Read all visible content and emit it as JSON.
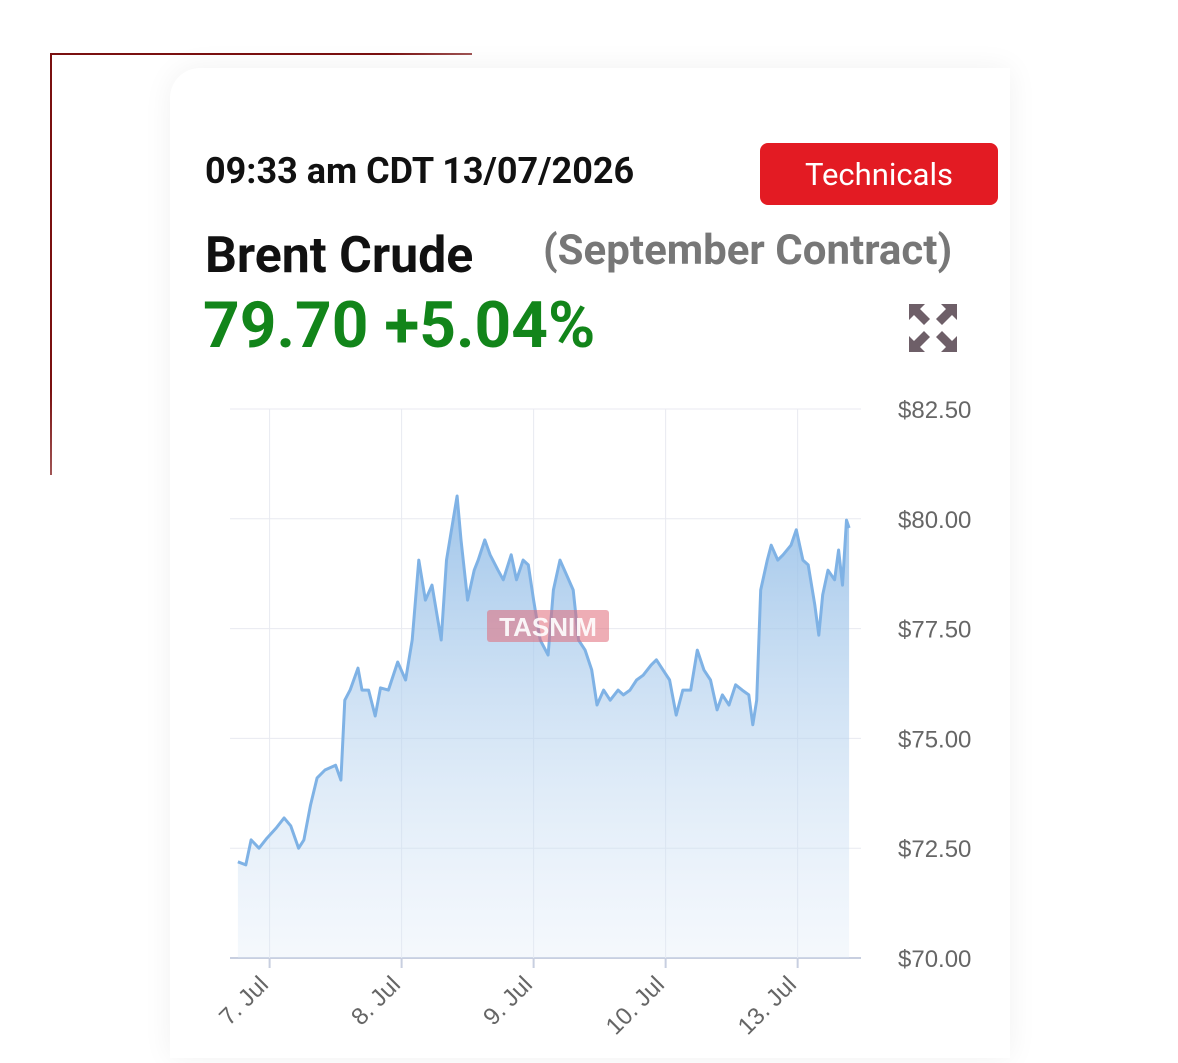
{
  "header": {
    "timestamp": "09:33 am CDT 13/07/2026",
    "button": "Technicals",
    "instrument": "Brent Crude",
    "contract": "(September Contract)",
    "price": "79.70",
    "change": "+5.04%"
  },
  "watermark": "TASNIM",
  "chart_data": {
    "type": "area",
    "color": "#7fb2e5",
    "x": [
      -0.24,
      -0.18,
      -0.14,
      -0.08,
      -0.02,
      0.05,
      0.11,
      0.16,
      0.22,
      0.26,
      0.31,
      0.36,
      0.42,
      0.5,
      0.54,
      0.57,
      0.61,
      0.67,
      0.7,
      0.75,
      0.8,
      0.84,
      0.9,
      0.97,
      1.03,
      1.08,
      1.13,
      1.18,
      1.23,
      1.3,
      1.34,
      1.39,
      1.42,
      1.45,
      1.5,
      1.55,
      1.58,
      1.63,
      1.67,
      1.73,
      1.77,
      1.83,
      1.87,
      1.92,
      1.96,
      2.0,
      2.05,
      2.11,
      2.15,
      2.2,
      2.25,
      2.3,
      2.34,
      2.39,
      2.44,
      2.48,
      2.53,
      2.58,
      2.64,
      2.68,
      2.73,
      2.78,
      2.83,
      2.89,
      2.93,
      2.98,
      3.03,
      3.08,
      3.13,
      3.19,
      3.24,
      3.29,
      3.34,
      3.39,
      3.43,
      3.48,
      3.53,
      3.58,
      3.63,
      3.66,
      3.69,
      3.72,
      3.77,
      3.8,
      3.85,
      3.89,
      3.95,
      3.99,
      4.04,
      4.08,
      4.13,
      4.16,
      4.19,
      4.23,
      4.28,
      4.31,
      4.34,
      4.37,
      4.39
    ],
    "values": [
      72.19,
      72.12,
      72.69,
      72.5,
      72.73,
      72.96,
      73.19,
      73.01,
      72.5,
      72.69,
      73.48,
      74.1,
      74.28,
      74.39,
      74.05,
      75.87,
      76.1,
      76.6,
      76.1,
      76.1,
      75.51,
      76.15,
      76.1,
      76.74,
      76.33,
      77.24,
      79.06,
      78.15,
      78.49,
      77.24,
      79.06,
      79.97,
      80.52,
      79.52,
      78.15,
      78.83,
      79.06,
      79.52,
      79.18,
      78.83,
      78.61,
      79.18,
      78.61,
      79.06,
      78.95,
      78.15,
      77.24,
      76.9,
      78.38,
      79.06,
      78.72,
      78.38,
      77.24,
      77.01,
      76.56,
      75.76,
      76.1,
      75.87,
      76.1,
      75.99,
      76.1,
      76.33,
      76.44,
      76.67,
      76.79,
      76.56,
      76.33,
      75.53,
      76.1,
      76.1,
      77.01,
      76.56,
      76.33,
      75.65,
      75.99,
      75.76,
      76.22,
      76.1,
      75.99,
      75.31,
      75.87,
      78.38,
      79.06,
      79.4,
      79.06,
      79.18,
      79.4,
      79.75,
      79.06,
      78.95,
      78.04,
      77.35,
      78.27,
      78.83,
      78.61,
      79.29,
      78.49,
      79.97,
      79.79
    ],
    "xlim": [
      -0.3,
      4.48
    ],
    "ylim": [
      70,
      82.5
    ],
    "xticks": [
      {
        "value": 0,
        "label": "7. Jul"
      },
      {
        "value": 1,
        "label": "8. Jul"
      },
      {
        "value": 2,
        "label": "9. Jul"
      },
      {
        "value": 3,
        "label": "10. Jul"
      },
      {
        "value": 4,
        "label": "13. Jul"
      }
    ],
    "yticks": [
      {
        "value": 70,
        "label": "$70.00"
      },
      {
        "value": 72.5,
        "label": "$72.50"
      },
      {
        "value": 75,
        "label": "$75.00"
      },
      {
        "value": 77.5,
        "label": "$77.50"
      },
      {
        "value": 80,
        "label": "$80.00"
      },
      {
        "value": 82.5,
        "label": "$82.50"
      }
    ],
    "grid": true
  }
}
